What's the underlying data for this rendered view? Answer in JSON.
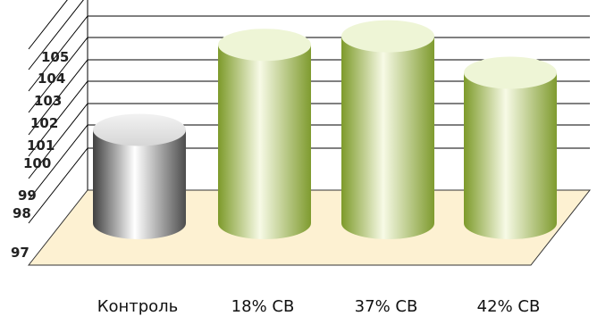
{
  "chart_data": {
    "type": "bar",
    "categories": [
      "Контроль",
      "18% СВ",
      "37% СВ",
      "42% СВ"
    ],
    "values": [
      100.3,
      104.2,
      104.6,
      102.9
    ],
    "ylim": [
      97,
      106
    ],
    "yticks": [
      97,
      98,
      99,
      100,
      101,
      102,
      103,
      104,
      105
    ],
    "grid": true,
    "bar_style": "3d-cylinder",
    "colors": {
      "control": "#b5b5b5",
      "treatment": "#a8bf60",
      "floor": "#fdf1d2",
      "grid": "#000000"
    }
  }
}
